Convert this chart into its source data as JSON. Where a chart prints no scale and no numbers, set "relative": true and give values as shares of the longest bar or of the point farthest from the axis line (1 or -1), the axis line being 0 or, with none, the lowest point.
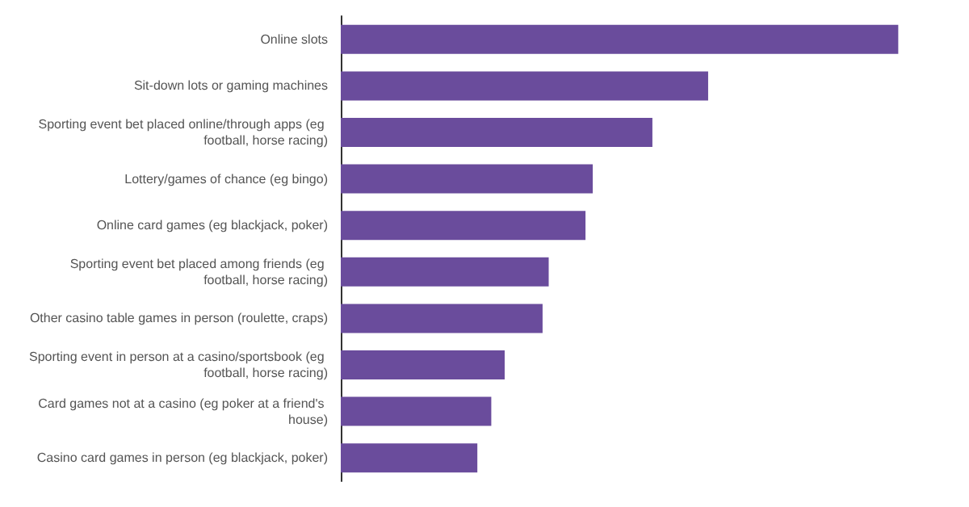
{
  "chart_data": {
    "type": "bar",
    "orientation": "horizontal",
    "relative": true,
    "color": "#6a4c9c",
    "categories": [
      "Online slots",
      "Sit-down lots or gaming machines",
      "Sporting event bet placed online/through apps (eg football, horse racing)",
      "Lottery/games of chance (eg bingo)",
      "Online card games (eg blackjack, poker)",
      "Sporting event bet placed among friends (eg football, horse racing)",
      "Other casino table games in person (roulette, craps)",
      "Sporting event in person at a casino/sportsbook (eg football, horse racing)",
      "Card games not at a casino (eg poker at a friend's house)",
      "Casino card games in person (eg blackjack, poker)"
    ],
    "values": [
      1,
      0.659,
      0.559,
      0.452,
      0.439,
      0.373,
      0.362,
      0.294,
      0.27,
      0.245
    ],
    "tick_labels": "y"
  }
}
